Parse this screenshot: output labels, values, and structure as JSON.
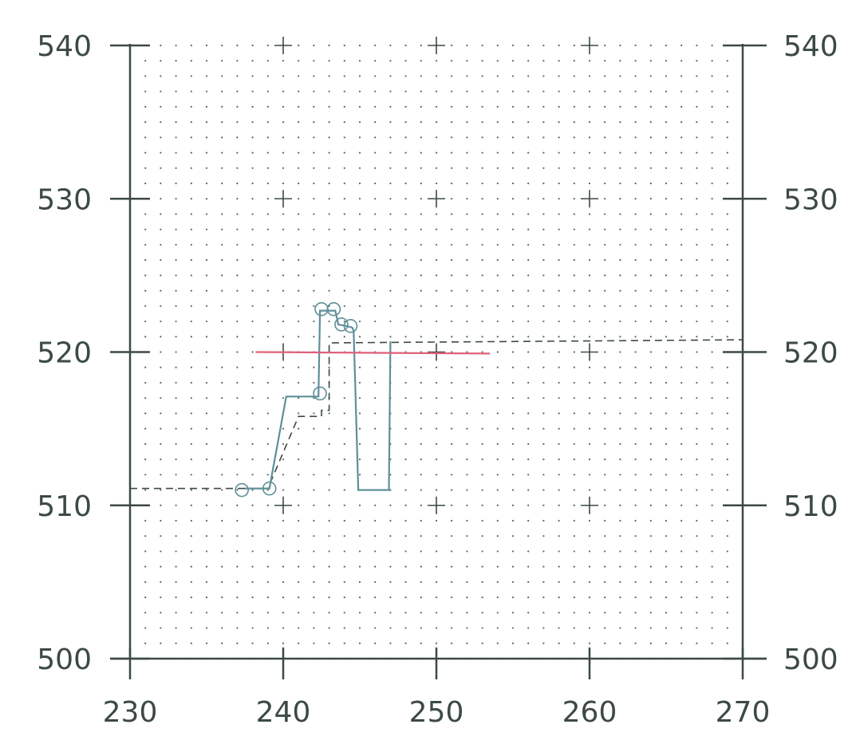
{
  "chart_data": {
    "type": "line",
    "title": "",
    "xlabel": "",
    "ylabel": "",
    "xlim": [
      230,
      270
    ],
    "ylim": [
      500,
      540
    ],
    "x_ticks": [
      "230",
      "240",
      "250",
      "260",
      "270"
    ],
    "y_ticks": [
      "500",
      "510",
      "520",
      "530",
      "540"
    ],
    "right_y_ticks": [
      "500",
      "510",
      "520",
      "530",
      "540"
    ],
    "grid": "dotted",
    "legend": "none",
    "series": [
      {
        "style": "dashed",
        "color": "#3c4a42",
        "x": [
          230,
          239.0,
          241.0,
          242.5,
          242.5,
          243.0,
          243.0,
          270
        ],
        "y": [
          511.1,
          511.1,
          515.8,
          515.8,
          516.2,
          516.2,
          520.6,
          520.8
        ]
      },
      {
        "style": "solid",
        "color": "#5f8f98",
        "x": [
          237.5,
          239.1,
          240.2,
          241.0,
          242.3,
          242.4,
          242.4,
          243.0,
          243.4,
          243.6,
          244.1,
          244.5,
          244.6,
          244.9,
          246.9,
          247.0
        ],
        "y": [
          511.1,
          511.1,
          517.1,
          517.1,
          517.1,
          522.6,
          522.7,
          522.7,
          522.7,
          521.8,
          521.7,
          521.6,
          521.4,
          511.0,
          511.0,
          520.7
        ]
      },
      {
        "style": "solid",
        "color": "#e0607a",
        "x": [
          238.2,
          253.5
        ],
        "y": [
          520.0,
          519.9
        ]
      }
    ],
    "markers": {
      "color": "#5f8f98",
      "x": [
        237.3,
        239.1,
        242.4,
        242.5,
        243.3,
        243.8,
        244.4
      ],
      "y": [
        511.0,
        511.1,
        517.3,
        522.8,
        522.8,
        521.8,
        521.7
      ]
    },
    "crosshairs": [
      [
        240,
        540
      ],
      [
        250,
        540
      ],
      [
        260,
        540
      ],
      [
        240,
        530
      ],
      [
        250,
        530
      ],
      [
        260,
        530
      ],
      [
        240,
        520
      ],
      [
        250,
        520
      ],
      [
        260,
        520
      ],
      [
        240,
        510
      ],
      [
        250,
        510
      ],
      [
        260,
        510
      ]
    ],
    "colors": {
      "axis": "#3c4a42",
      "grid": "#5a665f",
      "accent": "#5f8f98",
      "reference": "#e0607a"
    }
  }
}
